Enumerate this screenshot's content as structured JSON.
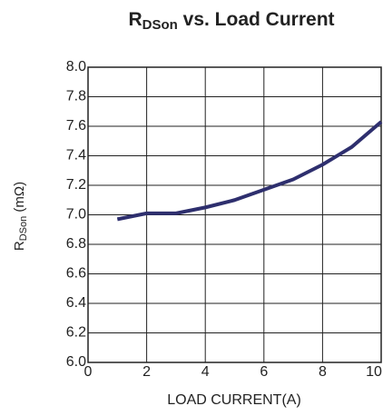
{
  "chart_data": {
    "type": "line",
    "title": [
      "R",
      "DSon",
      " vs.  Load Current"
    ],
    "x_label": "LOAD CURRENT(A)",
    "y_label": [
      "R",
      "DSon",
      " (mΩ)"
    ],
    "x": [
      1,
      2,
      3,
      4,
      5,
      6,
      7,
      8,
      9,
      10
    ],
    "series": [
      {
        "name": null,
        "color": "#2e2f6e",
        "values": [
          6.97,
          7.01,
          7.01,
          7.05,
          7.1,
          7.17,
          7.24,
          7.34,
          7.46,
          7.63
        ]
      }
    ],
    "xlim": [
      0,
      10
    ],
    "xticks": [
      0,
      2,
      4,
      6,
      8,
      10
    ],
    "ylim": [
      6,
      8
    ],
    "yticks": [
      {
        "value": 6,
        "label": "6.0"
      },
      {
        "value": 6.2,
        "label": "6.2"
      },
      {
        "value": 6.4,
        "label": "6.4"
      },
      {
        "value": 6.6,
        "label": "6.6"
      },
      {
        "value": 6.8,
        "label": "6.8"
      },
      {
        "value": 7,
        "label": "7.0"
      },
      {
        "value": 7.2,
        "label": "7.2"
      },
      {
        "value": 7.4,
        "label": "7.4"
      },
      {
        "value": 7.6,
        "label": "7.6"
      },
      {
        "value": 7.8,
        "label": "7.8"
      },
      {
        "value": 8,
        "label": "8.0"
      }
    ],
    "grid": true
  }
}
